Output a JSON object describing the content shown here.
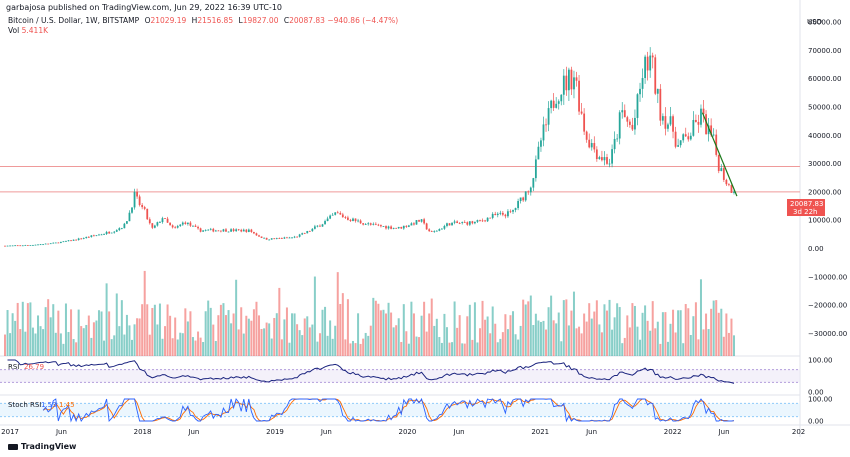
{
  "publisher": "garbajosa published on TradingView.com, Jun 29, 2022 16:39 UTC-10",
  "legend": {
    "symbol": "Bitcoin / U.S. Dollar, 1W, BITSTAMP",
    "open_label": "O",
    "open": "21029.19",
    "high_label": "H",
    "high": "21516.85",
    "low_label": "L",
    "low": "19827.00",
    "close_label": "C",
    "close": "20087.83",
    "change": "−940.86 (−4.47%)",
    "vol_label": "Vol",
    "vol": "5.411K"
  },
  "price_badge": {
    "price": "20087.83",
    "countdown": "3d 22h"
  },
  "brand": "TradingView",
  "colors": {
    "up": "#26a69a",
    "down": "#ef5350",
    "trendline": "#1b7a1b",
    "rsi": "#1a237e",
    "stoch_k": "#2962ff",
    "stoch_d": "#ff6d00"
  },
  "chart_data": {
    "type": "candlestick",
    "interval": "1W",
    "currency": "USD",
    "price_axis_ticks": [
      "80000.00",
      "70000.00",
      "60000.00",
      "50000.00",
      "40000.00",
      "30000.00",
      "20000.00",
      "10000.00",
      "0.00",
      "−10000.00",
      "−20000.00",
      "−30000.00"
    ],
    "price_axis_range": [
      -38000,
      85000
    ],
    "time_axis_ticks": [
      "2017",
      "Jun",
      "2018",
      "Jun",
      "2019",
      "Jun",
      "2020",
      "Jun",
      "2021",
      "Jun",
      "2022",
      "Jun",
      "202"
    ],
    "horizontal_lines": [
      29000,
      20000
    ],
    "trendline": {
      "from": {
        "date": "2022-04-01",
        "price": 48000
      },
      "to": {
        "date": "2022-07-05",
        "price": 18500
      }
    },
    "close_path": [
      {
        "date": "2016-12-26",
        "close": 960
      },
      {
        "date": "2017-03-01",
        "close": 1200
      },
      {
        "date": "2017-05-01",
        "close": 1800
      },
      {
        "date": "2017-06-15",
        "close": 2600
      },
      {
        "date": "2017-08-15",
        "close": 4200
      },
      {
        "date": "2017-10-15",
        "close": 6000
      },
      {
        "date": "2017-11-20",
        "close": 8200
      },
      {
        "date": "2017-12-17",
        "close": 19000
      },
      {
        "date": "2018-01-15",
        "close": 13000
      },
      {
        "date": "2018-02-05",
        "close": 7000
      },
      {
        "date": "2018-03-05",
        "close": 11000
      },
      {
        "date": "2018-04-05",
        "close": 6800
      },
      {
        "date": "2018-05-05",
        "close": 9500
      },
      {
        "date": "2018-06-15",
        "close": 6400
      },
      {
        "date": "2018-08-15",
        "close": 6500
      },
      {
        "date": "2018-11-01",
        "close": 6300
      },
      {
        "date": "2018-12-15",
        "close": 3300
      },
      {
        "date": "2019-03-01",
        "close": 3900
      },
      {
        "date": "2019-05-01",
        "close": 7500
      },
      {
        "date": "2019-06-26",
        "close": 12500
      },
      {
        "date": "2019-08-01",
        "close": 10500
      },
      {
        "date": "2019-10-01",
        "close": 8300
      },
      {
        "date": "2019-12-15",
        "close": 7200
      },
      {
        "date": "2020-02-15",
        "close": 10000
      },
      {
        "date": "2020-03-15",
        "close": 5500
      },
      {
        "date": "2020-05-01",
        "close": 8800
      },
      {
        "date": "2020-07-15",
        "close": 9200
      },
      {
        "date": "2020-09-01",
        "close": 11500
      },
      {
        "date": "2020-10-20",
        "close": 12500
      },
      {
        "date": "2020-11-15",
        "close": 17000
      },
      {
        "date": "2020-12-15",
        "close": 23000
      },
      {
        "date": "2021-01-10",
        "close": 38000
      },
      {
        "date": "2021-02-20",
        "close": 55000
      },
      {
        "date": "2021-04-14",
        "close": 62000
      },
      {
        "date": "2021-05-15",
        "close": 40000
      },
      {
        "date": "2021-06-20",
        "close": 33000
      },
      {
        "date": "2021-07-20",
        "close": 30500
      },
      {
        "date": "2021-08-20",
        "close": 48000
      },
      {
        "date": "2021-09-20",
        "close": 42000
      },
      {
        "date": "2021-10-20",
        "close": 63000
      },
      {
        "date": "2021-11-10",
        "close": 67000
      },
      {
        "date": "2021-12-05",
        "close": 49000
      },
      {
        "date": "2022-01-10",
        "close": 42000
      },
      {
        "date": "2022-01-24",
        "close": 36000
      },
      {
        "date": "2022-03-01",
        "close": 41000
      },
      {
        "date": "2022-03-28",
        "close": 47000
      },
      {
        "date": "2022-05-01",
        "close": 38000
      },
      {
        "date": "2022-05-15",
        "close": 30000
      },
      {
        "date": "2022-06-13",
        "close": 22000
      },
      {
        "date": "2022-06-27",
        "close": 20087.83
      }
    ],
    "rsi": {
      "label": "RSI",
      "value": "26.79",
      "axis_ticks": [
        "100.00",
        "0.00"
      ],
      "bands": [
        70,
        30
      ]
    },
    "stoch_rsi": {
      "label": "Stoch RSI",
      "k": "1.53",
      "d": "1.45",
      "axis_ticks": [
        "100.00",
        "0.00"
      ],
      "bands": [
        80,
        20
      ]
    }
  }
}
